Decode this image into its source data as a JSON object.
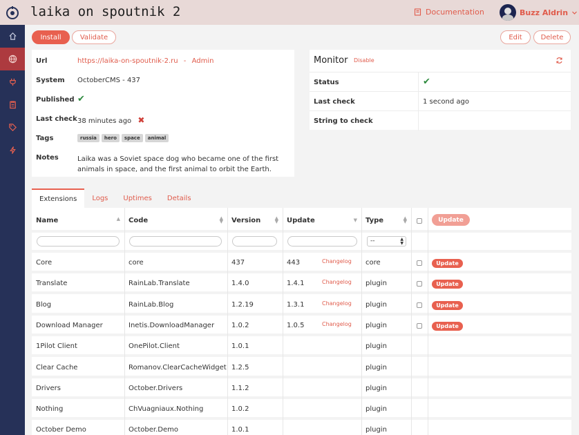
{
  "header": {
    "title": "laika on spoutnik 2",
    "documentation_label": "Documentation",
    "user_name": "Buzz Aldrin"
  },
  "sidebar": {
    "items": [
      {
        "icon": "home-icon"
      },
      {
        "icon": "globe-icon",
        "active": true
      },
      {
        "icon": "plug-icon"
      },
      {
        "icon": "clipboard-icon"
      },
      {
        "icon": "tags-icon"
      },
      {
        "icon": "bolt-icon"
      }
    ]
  },
  "toolbar": {
    "install_label": "Install",
    "validate_label": "Validate",
    "edit_label": "Edit",
    "delete_label": "Delete"
  },
  "info": {
    "url_label": "Url",
    "url_value": "https://laika-on-spoutnik-2.ru",
    "url_separator": "-",
    "admin_label": "Admin",
    "system_label": "System",
    "system_value": "OctoberCMS - 437",
    "published_label": "Published",
    "last_check_label": "Last check",
    "last_check_value": "38 minutes ago",
    "tags_label": "Tags",
    "tags": [
      "russia",
      "hero",
      "space",
      "animal"
    ],
    "notes_label": "Notes",
    "notes_line1": "Laika was a Soviet space dog who became one of the first",
    "notes_line2": "animals in space, and the first animal to orbit the Earth."
  },
  "monitor": {
    "title": "Monitor",
    "disable_label": "Disable",
    "status_label": "Status",
    "last_check_label": "Last check",
    "last_check_value": "1 second ago",
    "string_label": "String to check",
    "string_value": ""
  },
  "tabs": [
    "Extensions",
    "Logs",
    "Uptimes",
    "Details"
  ],
  "table": {
    "columns": [
      "Name",
      "Code",
      "Version",
      "Update",
      "Type"
    ],
    "update_all_label": "Update",
    "type_filter": "--",
    "changelog_label": "Changelog",
    "update_label": "Update",
    "rows": [
      {
        "name": "Core",
        "code": "core",
        "version": "437",
        "update": "443",
        "type": "core",
        "has_update": true
      },
      {
        "name": "Translate",
        "code": "RainLab.Translate",
        "version": "1.4.0",
        "update": "1.4.1",
        "type": "plugin",
        "has_update": true
      },
      {
        "name": "Blog",
        "code": "RainLab.Blog",
        "version": "1.2.19",
        "update": "1.3.1",
        "type": "plugin",
        "has_update": true
      },
      {
        "name": "Download Manager",
        "code": "Inetis.DownloadManager",
        "version": "1.0.2",
        "update": "1.0.5",
        "type": "plugin",
        "has_update": true
      },
      {
        "name": "1Pilot Client",
        "code": "OnePilot.Client",
        "version": "1.0.1",
        "update": "",
        "type": "plugin",
        "has_update": false
      },
      {
        "name": "Clear Cache",
        "code": "Romanov.ClearCacheWidget",
        "version": "1.2.5",
        "update": "",
        "type": "plugin",
        "has_update": false
      },
      {
        "name": "Drivers",
        "code": "October.Drivers",
        "version": "1.1.2",
        "update": "",
        "type": "plugin",
        "has_update": false
      },
      {
        "name": "Nothing",
        "code": "ChVuagniaux.Nothing",
        "version": "1.0.2",
        "update": "",
        "type": "plugin",
        "has_update": false
      },
      {
        "name": "October Demo",
        "code": "October.Demo",
        "version": "1.0.1",
        "update": "",
        "type": "plugin",
        "has_update": false
      }
    ]
  },
  "colors": {
    "accent": "#e8604f",
    "sidebar": "#263158",
    "sidebar_active": "#ad3a3f",
    "header": "#e8d9d7",
    "check": "#2d8a3e"
  }
}
